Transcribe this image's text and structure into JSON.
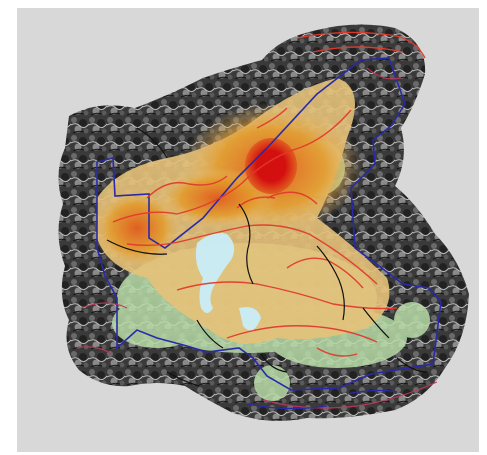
{
  "map": {
    "background_color": "#d8d8d8",
    "layers": [
      {
        "name": "aerial-imagery",
        "style": "grayscale satellite photo"
      },
      {
        "name": "heat-density",
        "colors": [
          "#b8dca8",
          "#e6c27a",
          "#e39a2a",
          "#e05a1e",
          "#d40f0f"
        ]
      },
      {
        "name": "property-boundary",
        "color": "#2a2aa8"
      },
      {
        "name": "trails",
        "color": "#e23b2c"
      },
      {
        "name": "streams",
        "color": "#111111"
      },
      {
        "name": "roads",
        "color": "#c03a5a"
      },
      {
        "name": "water-body",
        "color": "#c9f0ff"
      }
    ]
  }
}
